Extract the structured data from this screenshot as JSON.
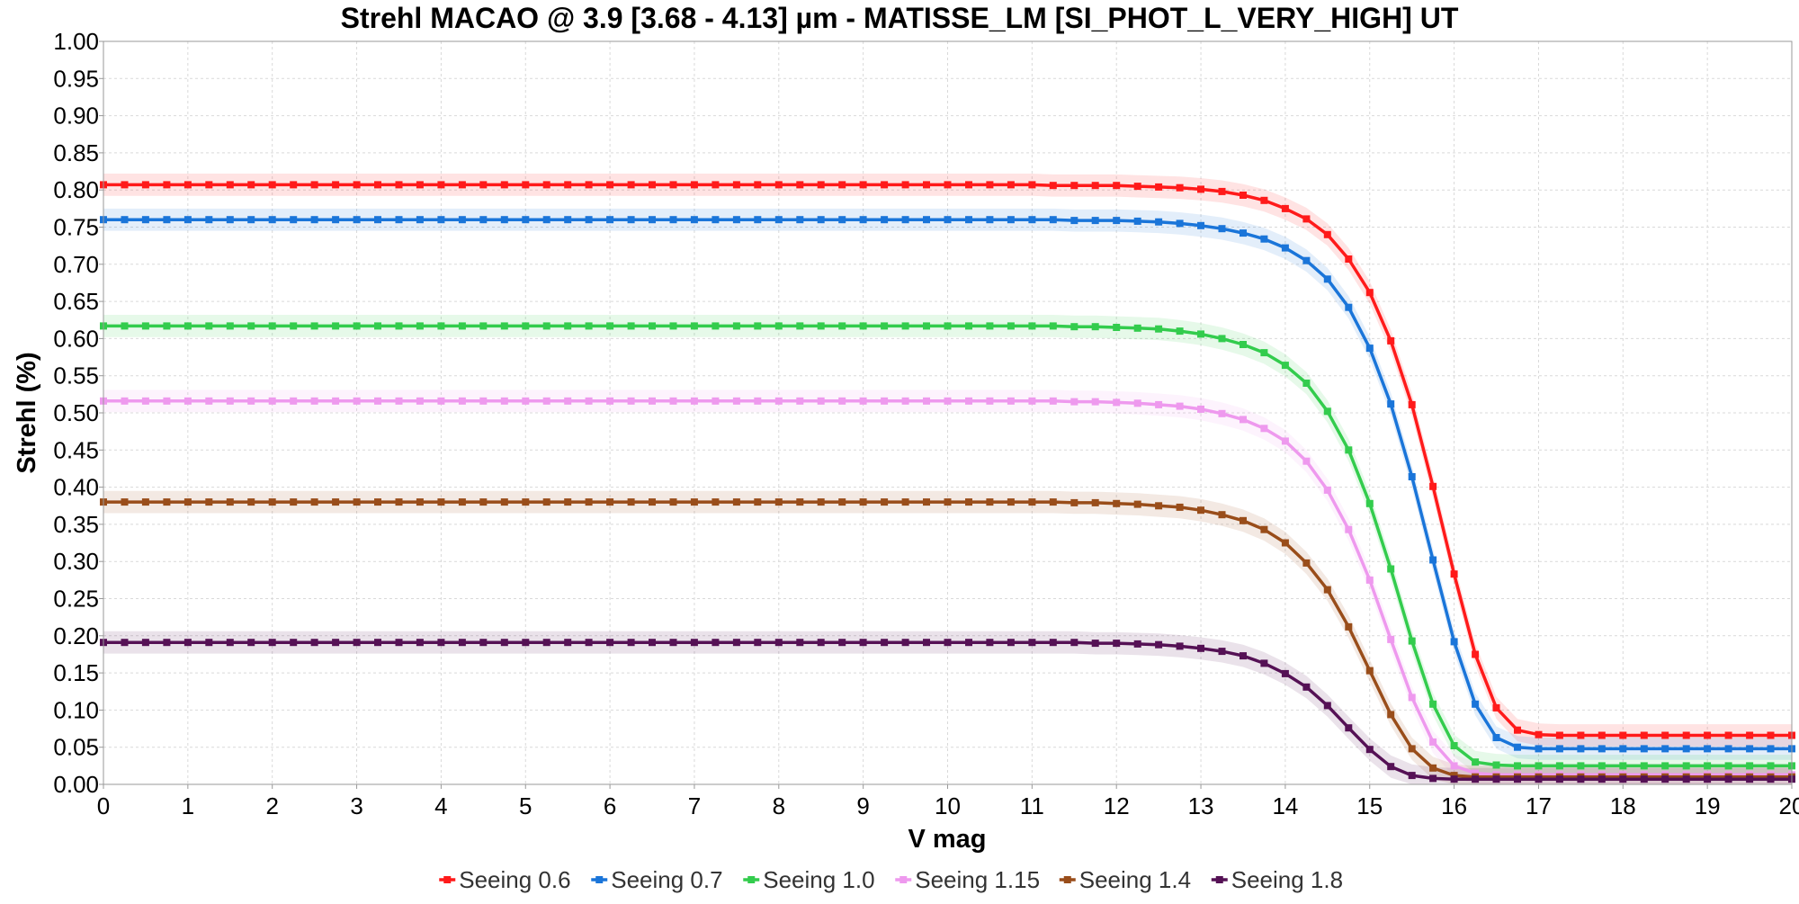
{
  "chart_data": {
    "type": "line",
    "title": "Strehl MACAO @ 3.9 [3.68 - 4.13] µm - MATISSE_LM [SI_PHOT_L_VERY_HIGH] UT",
    "xlabel": "V mag",
    "ylabel": "Strehl (%)",
    "xlim": [
      0,
      20
    ],
    "ylim": [
      0,
      1
    ],
    "x_ticks": [
      "0",
      "1",
      "2",
      "3",
      "4",
      "5",
      "6",
      "7",
      "8",
      "9",
      "10",
      "11",
      "12",
      "13",
      "14",
      "15",
      "16",
      "17",
      "18",
      "19",
      "20"
    ],
    "y_ticks": [
      "0.00",
      "0.05",
      "0.10",
      "0.15",
      "0.20",
      "0.25",
      "0.30",
      "0.35",
      "0.40",
      "0.45",
      "0.50",
      "0.55",
      "0.60",
      "0.65",
      "0.70",
      "0.75",
      "0.80",
      "0.85",
      "0.90",
      "0.95",
      "1.00"
    ],
    "grid": true,
    "legend_position": "bottom",
    "band_halfwidth": 0.015,
    "x": [
      0,
      0.25,
      0.5,
      0.75,
      1,
      1.25,
      1.5,
      1.75,
      2,
      2.25,
      2.5,
      2.75,
      3,
      3.25,
      3.5,
      3.75,
      4,
      4.25,
      4.5,
      4.75,
      5,
      5.25,
      5.5,
      5.75,
      6,
      6.25,
      6.5,
      6.75,
      7,
      7.25,
      7.5,
      7.75,
      8,
      8.25,
      8.5,
      8.75,
      9,
      9.25,
      9.5,
      9.75,
      10,
      10.25,
      10.5,
      10.75,
      11,
      11.25,
      11.5,
      11.75,
      12,
      12.25,
      12.5,
      12.75,
      13,
      13.25,
      13.5,
      13.75,
      14,
      14.25,
      14.5,
      14.75,
      15,
      15.25,
      15.5,
      15.75,
      16,
      16.25,
      16.5,
      16.75,
      17,
      17.25,
      17.5,
      17.75,
      18,
      18.25,
      18.5,
      18.75,
      19,
      19.25,
      19.5,
      19.75,
      20
    ],
    "series": [
      {
        "name": "Seeing 0.6",
        "color": "#ff1a1a",
        "values": [
          0.807,
          0.807,
          0.807,
          0.807,
          0.807,
          0.807,
          0.807,
          0.807,
          0.807,
          0.807,
          0.807,
          0.807,
          0.807,
          0.807,
          0.807,
          0.807,
          0.807,
          0.807,
          0.807,
          0.807,
          0.807,
          0.807,
          0.807,
          0.807,
          0.807,
          0.807,
          0.807,
          0.807,
          0.807,
          0.807,
          0.807,
          0.807,
          0.807,
          0.807,
          0.807,
          0.807,
          0.807,
          0.807,
          0.807,
          0.807,
          0.807,
          0.807,
          0.807,
          0.807,
          0.807,
          0.806,
          0.806,
          0.806,
          0.806,
          0.805,
          0.804,
          0.803,
          0.801,
          0.798,
          0.793,
          0.786,
          0.775,
          0.761,
          0.74,
          0.707,
          0.662,
          0.597,
          0.511,
          0.401,
          0.283,
          0.175,
          0.103,
          0.073,
          0.067,
          0.066,
          0.066,
          0.066,
          0.066,
          0.066,
          0.066,
          0.066,
          0.066,
          0.066,
          0.066,
          0.066,
          0.066
        ]
      },
      {
        "name": "Seeing 0.7",
        "color": "#1a75d9",
        "values": [
          0.76,
          0.76,
          0.76,
          0.76,
          0.76,
          0.76,
          0.76,
          0.76,
          0.76,
          0.76,
          0.76,
          0.76,
          0.76,
          0.76,
          0.76,
          0.76,
          0.76,
          0.76,
          0.76,
          0.76,
          0.76,
          0.76,
          0.76,
          0.76,
          0.76,
          0.76,
          0.76,
          0.76,
          0.76,
          0.76,
          0.76,
          0.76,
          0.76,
          0.76,
          0.76,
          0.76,
          0.76,
          0.76,
          0.76,
          0.76,
          0.76,
          0.76,
          0.76,
          0.76,
          0.76,
          0.76,
          0.759,
          0.759,
          0.759,
          0.758,
          0.757,
          0.755,
          0.752,
          0.748,
          0.742,
          0.734,
          0.722,
          0.705,
          0.68,
          0.642,
          0.587,
          0.512,
          0.414,
          0.302,
          0.192,
          0.108,
          0.063,
          0.05,
          0.048,
          0.048,
          0.048,
          0.048,
          0.048,
          0.048,
          0.048,
          0.048,
          0.048,
          0.048,
          0.048,
          0.048,
          0.048
        ]
      },
      {
        "name": "Seeing 1.0",
        "color": "#33cc4d",
        "values": [
          0.617,
          0.617,
          0.617,
          0.617,
          0.617,
          0.617,
          0.617,
          0.617,
          0.617,
          0.617,
          0.617,
          0.617,
          0.617,
          0.617,
          0.617,
          0.617,
          0.617,
          0.617,
          0.617,
          0.617,
          0.617,
          0.617,
          0.617,
          0.617,
          0.617,
          0.617,
          0.617,
          0.617,
          0.617,
          0.617,
          0.617,
          0.617,
          0.617,
          0.617,
          0.617,
          0.617,
          0.617,
          0.617,
          0.617,
          0.617,
          0.617,
          0.617,
          0.617,
          0.617,
          0.617,
          0.617,
          0.616,
          0.616,
          0.615,
          0.614,
          0.613,
          0.61,
          0.606,
          0.6,
          0.592,
          0.581,
          0.564,
          0.54,
          0.502,
          0.45,
          0.378,
          0.29,
          0.193,
          0.108,
          0.052,
          0.03,
          0.026,
          0.025,
          0.025,
          0.025,
          0.025,
          0.025,
          0.025,
          0.025,
          0.025,
          0.025,
          0.025,
          0.025,
          0.025,
          0.025,
          0.025
        ]
      },
      {
        "name": "Seeing 1.15",
        "color": "#ee99ee",
        "values": [
          0.516,
          0.516,
          0.516,
          0.516,
          0.516,
          0.516,
          0.516,
          0.516,
          0.516,
          0.516,
          0.516,
          0.516,
          0.516,
          0.516,
          0.516,
          0.516,
          0.516,
          0.516,
          0.516,
          0.516,
          0.516,
          0.516,
          0.516,
          0.516,
          0.516,
          0.516,
          0.516,
          0.516,
          0.516,
          0.516,
          0.516,
          0.516,
          0.516,
          0.516,
          0.516,
          0.516,
          0.516,
          0.516,
          0.516,
          0.516,
          0.516,
          0.516,
          0.516,
          0.516,
          0.516,
          0.516,
          0.515,
          0.515,
          0.514,
          0.513,
          0.511,
          0.509,
          0.505,
          0.499,
          0.491,
          0.479,
          0.462,
          0.435,
          0.396,
          0.343,
          0.275,
          0.195,
          0.117,
          0.057,
          0.025,
          0.015,
          0.013,
          0.013,
          0.013,
          0.013,
          0.013,
          0.013,
          0.013,
          0.013,
          0.013,
          0.013,
          0.013,
          0.013,
          0.013,
          0.013,
          0.013
        ]
      },
      {
        "name": "Seeing 1.4",
        "color": "#994d1a",
        "values": [
          0.38,
          0.38,
          0.38,
          0.38,
          0.38,
          0.38,
          0.38,
          0.38,
          0.38,
          0.38,
          0.38,
          0.38,
          0.38,
          0.38,
          0.38,
          0.38,
          0.38,
          0.38,
          0.38,
          0.38,
          0.38,
          0.38,
          0.38,
          0.38,
          0.38,
          0.38,
          0.38,
          0.38,
          0.38,
          0.38,
          0.38,
          0.38,
          0.38,
          0.38,
          0.38,
          0.38,
          0.38,
          0.38,
          0.38,
          0.38,
          0.38,
          0.38,
          0.38,
          0.38,
          0.38,
          0.38,
          0.379,
          0.379,
          0.378,
          0.377,
          0.375,
          0.373,
          0.369,
          0.363,
          0.355,
          0.343,
          0.325,
          0.298,
          0.262,
          0.212,
          0.153,
          0.094,
          0.048,
          0.022,
          0.012,
          0.01,
          0.01,
          0.01,
          0.01,
          0.01,
          0.01,
          0.01,
          0.01,
          0.01,
          0.01,
          0.01,
          0.01,
          0.01,
          0.01,
          0.01,
          0.01
        ]
      },
      {
        "name": "Seeing 1.8",
        "color": "#551155",
        "values": [
          0.191,
          0.191,
          0.191,
          0.191,
          0.191,
          0.191,
          0.191,
          0.191,
          0.191,
          0.191,
          0.191,
          0.191,
          0.191,
          0.191,
          0.191,
          0.191,
          0.191,
          0.191,
          0.191,
          0.191,
          0.191,
          0.191,
          0.191,
          0.191,
          0.191,
          0.191,
          0.191,
          0.191,
          0.191,
          0.191,
          0.191,
          0.191,
          0.191,
          0.191,
          0.191,
          0.191,
          0.191,
          0.191,
          0.191,
          0.191,
          0.191,
          0.191,
          0.191,
          0.191,
          0.191,
          0.191,
          0.191,
          0.19,
          0.19,
          0.189,
          0.188,
          0.186,
          0.183,
          0.179,
          0.173,
          0.163,
          0.149,
          0.131,
          0.106,
          0.076,
          0.047,
          0.024,
          0.012,
          0.008,
          0.007,
          0.007,
          0.007,
          0.007,
          0.007,
          0.007,
          0.007,
          0.007,
          0.007,
          0.007,
          0.007,
          0.007,
          0.007,
          0.007,
          0.007,
          0.007,
          0.007
        ]
      }
    ]
  }
}
